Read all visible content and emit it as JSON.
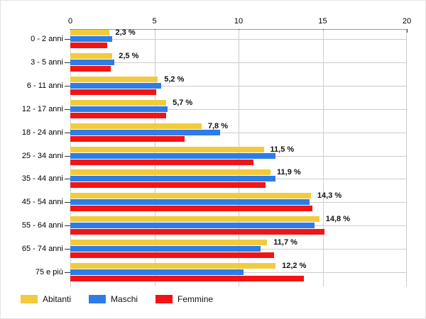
{
  "chart_data": {
    "type": "bar",
    "orientation": "horizontal",
    "title": "",
    "xlabel": "",
    "ylabel": "",
    "xlim": [
      0,
      20
    ],
    "x_ticks": [
      0,
      5,
      10,
      15,
      20
    ],
    "grid": true,
    "legend_position": "bottom-left",
    "categories": [
      "0 - 2 anni",
      "3 - 5 anni",
      "6 - 11 anni",
      "12 - 17 anni",
      "18 - 24 anni",
      "25 - 34 anni",
      "35 - 44 anni",
      "45 - 54 anni",
      "55 - 64 anni",
      "65 - 74 anni",
      "75 e più"
    ],
    "series": [
      {
        "name": "Abitanti",
        "color": "#F2CB3D",
        "values": [
          2.3,
          2.5,
          5.2,
          5.7,
          7.8,
          11.5,
          11.9,
          14.3,
          14.8,
          11.7,
          12.2
        ],
        "labels": [
          "2,3 %",
          "2,5 %",
          "5,2 %",
          "5,7 %",
          "7,8 %",
          "11,5 %",
          "11,9 %",
          "14,3 %",
          "14,8 %",
          "11,7 %",
          "12,2 %"
        ]
      },
      {
        "name": "Maschi",
        "color": "#2D7CE9",
        "values": [
          2.5,
          2.6,
          5.4,
          5.8,
          8.9,
          12.2,
          12.2,
          14.2,
          14.5,
          11.3,
          10.3
        ]
      },
      {
        "name": "Femmine",
        "color": "#F21414",
        "values": [
          2.2,
          2.4,
          5.1,
          5.7,
          6.8,
          10.9,
          11.6,
          14.4,
          15.1,
          12.1,
          13.9
        ]
      }
    ],
    "colors": {
      "gridline": "#cccccc",
      "axis_line": "#999999",
      "tick": "#333333",
      "text": "#000000"
    }
  }
}
